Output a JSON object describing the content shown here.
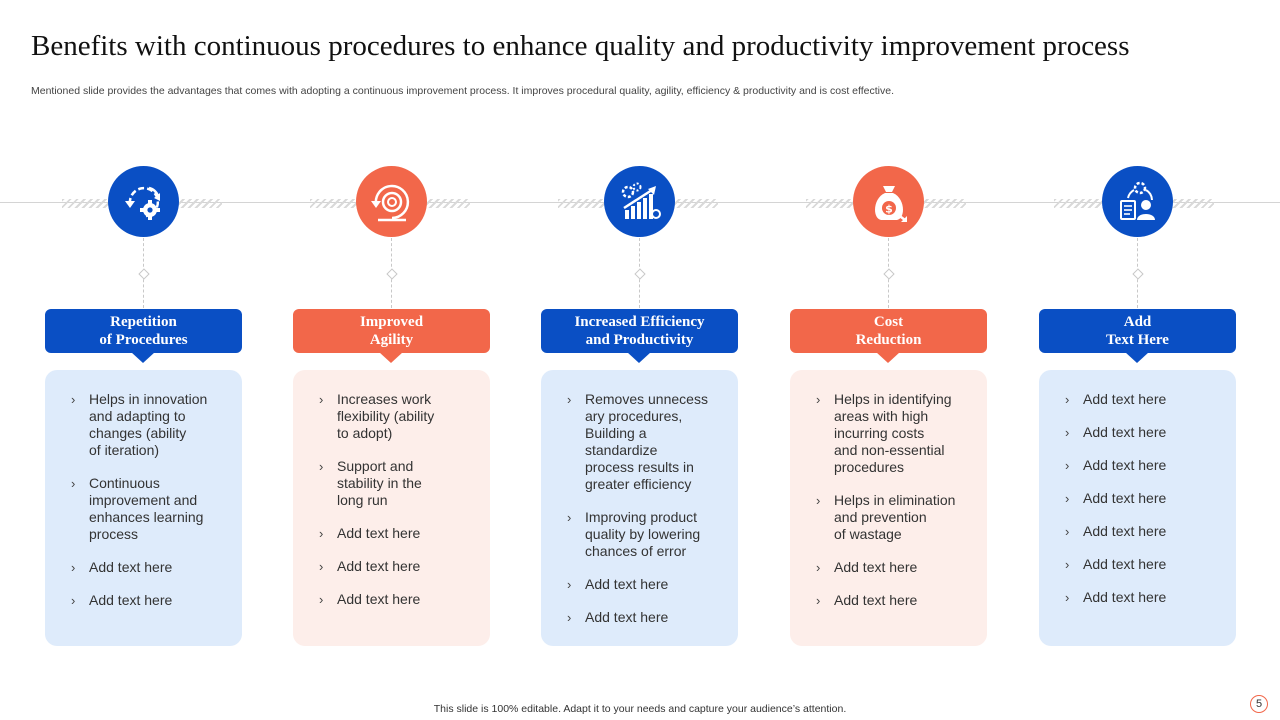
{
  "title": "Benefits with continuous procedures to enhance quality and productivity improvement process",
  "subtitle": "Mentioned slide provides the advantages that comes with adopting a continuous improvement process. It improves procedural quality, agility, efficiency & productivity and is cost effective.",
  "colors": {
    "blue": "#0a4fc4",
    "orange": "#f2674a",
    "blue_light": "#deebfb",
    "orange_light": "#fdeeea"
  },
  "bullet_glyph": "›",
  "columns": [
    {
      "icon": "cycle-gear-icon",
      "color": "blue",
      "heading": "Repetition\nof Procedures",
      "items": [
        "Helps in innovation\nand adapting to\nchanges (ability\nof iteration)",
        "Continuous\nimprovement and\nenhances learning\nprocess",
        "Add text here",
        "Add text here"
      ]
    },
    {
      "icon": "agility-cycle-icon",
      "color": "orange",
      "heading": "Improved\nAgility",
      "items": [
        "Increases work\nflexibility (ability\nto adopt)",
        "Support and\nstability in the\nlong run",
        "Add text here",
        "Add text here",
        "Add text here"
      ]
    },
    {
      "icon": "growth-chart-gear-icon",
      "color": "blue",
      "heading": "Increased Efficiency\nand Productivity",
      "items": [
        "Removes unnecess\nary procedures,\nBuilding a\nstandardize\nprocess results in\ngreater efficiency",
        "Improving product\nquality by lowering\nchances of error",
        "Add text here",
        "Add text here"
      ]
    },
    {
      "icon": "money-bag-icon",
      "color": "orange",
      "heading": "Cost\nReduction",
      "items": [
        "Helps in identifying\nareas with high\nincurring costs\nand non-essential\nprocedures",
        "Helps in elimination\nand prevention\nof wastage",
        "Add text here",
        "Add text here"
      ]
    },
    {
      "icon": "team-process-icon",
      "color": "blue",
      "heading": "Add\nText Here",
      "items": [
        "Add text here",
        "Add text here",
        "Add text here",
        "Add text here",
        "Add text here",
        "Add text here",
        "Add text here"
      ]
    }
  ],
  "footer": "This slide is 100% editable. Adapt it to your needs and capture your audience’s attention.",
  "page_number": "5"
}
